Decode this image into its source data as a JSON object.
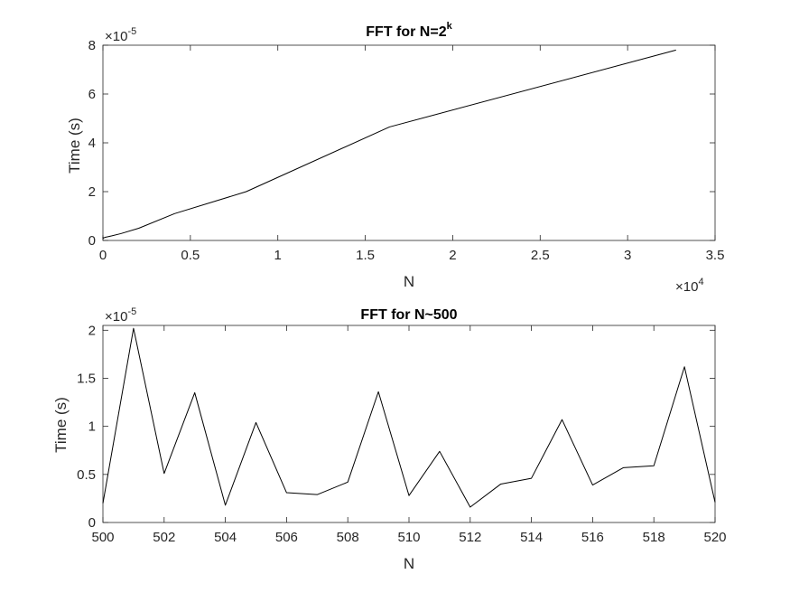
{
  "chart_data": [
    {
      "type": "line",
      "title": "FFT for N=2",
      "title_superscript": "k",
      "xlabel": "N",
      "ylabel": "Time (s)",
      "x_multiplier": "×10",
      "x_multiplier_exp": "4",
      "y_multiplier": "×10",
      "y_multiplier_exp": "-5",
      "xlim": [
        0,
        35000
      ],
      "ylim": [
        0,
        8e-05
      ],
      "xticks": [
        0,
        5000,
        10000,
        15000,
        20000,
        25000,
        30000,
        35000
      ],
      "xtick_labels": [
        "0",
        "0.5",
        "1",
        "1.5",
        "2",
        "2.5",
        "3",
        "3.5"
      ],
      "yticks": [
        0,
        2e-05,
        4e-05,
        6e-05,
        8e-05
      ],
      "ytick_labels": [
        "0",
        "2",
        "4",
        "6",
        "8"
      ],
      "grid": false,
      "series": [
        {
          "color": "#000000",
          "x": [
            2,
            4,
            8,
            16,
            32,
            64,
            128,
            256,
            512,
            1024,
            2048,
            4096,
            8192,
            16384,
            32768
          ],
          "y": [
            1.5e-06,
            1e-06,
            8e-07,
            9e-07,
            1e-06,
            1.1e-06,
            1.3e-06,
            1.5e-06,
            1.9e-06,
            2.8e-06,
            5e-06,
            1.1e-05,
            2e-05,
            4.65e-05,
            7.8e-05
          ]
        }
      ]
    },
    {
      "type": "line",
      "title": "FFT for N~500",
      "xlabel": "N",
      "ylabel": "Time (s)",
      "y_multiplier": "×10",
      "y_multiplier_exp": "-5",
      "xlim": [
        500,
        520
      ],
      "ylim": [
        0,
        2.05e-05
      ],
      "xticks": [
        500,
        502,
        504,
        506,
        508,
        510,
        512,
        514,
        516,
        518,
        520
      ],
      "xtick_labels": [
        "500",
        "502",
        "504",
        "506",
        "508",
        "510",
        "512",
        "514",
        "516",
        "518",
        "520"
      ],
      "yticks": [
        0,
        5e-06,
        1e-05,
        1.5e-05,
        2e-05
      ],
      "ytick_labels": [
        "0",
        "0.5",
        "1",
        "1.5",
        "2"
      ],
      "grid": false,
      "series": [
        {
          "color": "#000000",
          "x": [
            500,
            501,
            502,
            503,
            504,
            505,
            506,
            507,
            508,
            509,
            510,
            511,
            512,
            513,
            514,
            515,
            516,
            517,
            518,
            519,
            520
          ],
          "y": [
            2e-06,
            2.02e-05,
            5.1e-06,
            1.35e-05,
            1.8e-06,
            1.04e-05,
            3.1e-06,
            2.9e-06,
            4.2e-06,
            1.36e-05,
            2.8e-06,
            7.4e-06,
            1.6e-06,
            4e-06,
            4.6e-06,
            1.07e-05,
            3.9e-06,
            5.7e-06,
            5.9e-06,
            1.62e-05,
            2.1e-06
          ]
        }
      ]
    }
  ]
}
